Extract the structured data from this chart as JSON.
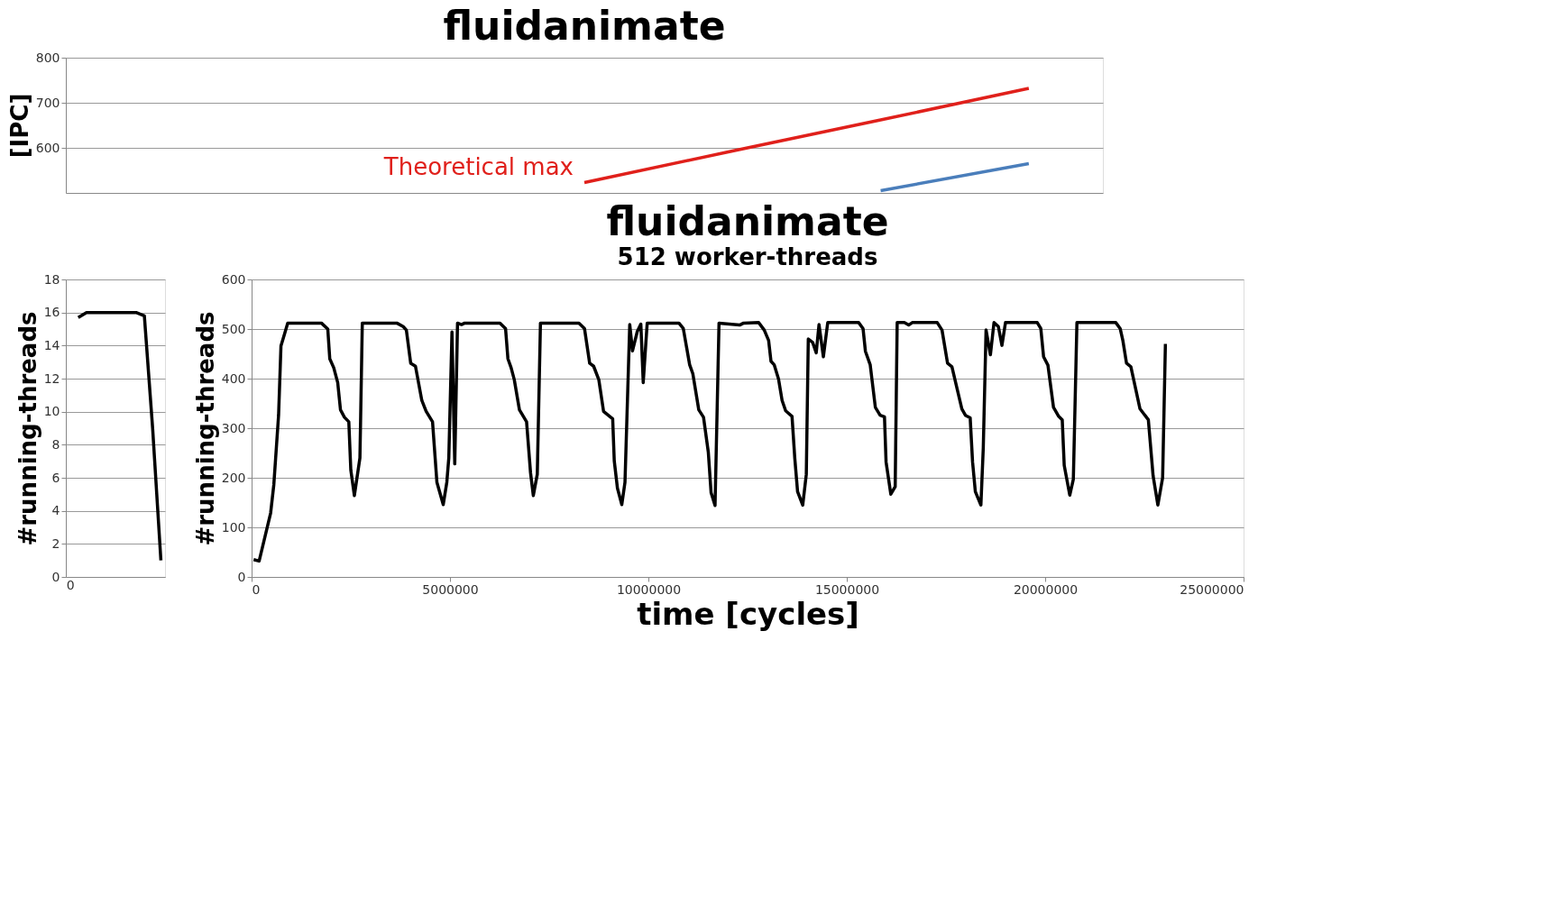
{
  "chart_data": [
    {
      "type": "line",
      "title": "fluidanimate",
      "ylabel": "[IPC]",
      "categories": [
        null,
        null,
        null,
        null,
        null,
        null,
        null
      ],
      "ylim": [
        500,
        800
      ],
      "yticks": [
        600,
        700,
        800
      ],
      "grid": "y",
      "tick_labels": "y",
      "series": [
        {
          "name": "Theoretical max",
          "color": "#e0201b",
          "values": [
            null,
            null,
            null,
            523,
            593,
            662,
            732
          ]
        },
        {
          "color": "#4a7ebb",
          "values": [
            null,
            null,
            null,
            null,
            null,
            505,
            565
          ]
        }
      ]
    },
    {
      "type": "line",
      "ylabel": "#running-threads",
      "categories": [
        "0",
        null,
        null,
        null,
        null,
        null,
        null,
        null,
        null,
        null,
        null,
        null
      ],
      "ylim": [
        0,
        18
      ],
      "yticks": [
        0,
        2,
        4,
        6,
        8,
        10,
        12,
        14,
        16,
        18
      ],
      "grid": "y",
      "series": [
        {
          "color": "#000000",
          "values": [
            null,
            15.7,
            16,
            16,
            16,
            16,
            16,
            16,
            16,
            15.8,
            9,
            1
          ]
        }
      ]
    },
    {
      "type": "line",
      "title": "fluidanimate",
      "subtitle": "512 worker-threads",
      "xlabel": "time [cycles]",
      "ylabel": "#running-threads",
      "xlim": [
        0,
        25000000
      ],
      "xticks": [
        0,
        5000000,
        10000000,
        15000000,
        20000000,
        25000000
      ],
      "ylim": [
        0,
        600
      ],
      "yticks": [
        0,
        100,
        200,
        300,
        400,
        500,
        600
      ],
      "grid": "y",
      "series": [
        {
          "color": "#000000",
          "x": [
            50000,
            190000,
            480000,
            560000,
            680000,
            740000,
            830000,
            910000,
            1760000,
            1920000,
            1970000,
            2070000,
            2170000,
            2240000,
            2340000,
            2450000,
            2500000,
            2590000,
            2730000,
            2790000,
            3660000,
            3820000,
            3900000,
            4010000,
            4130000,
            4290000,
            4400000,
            4560000,
            4670000,
            4830000,
            4920000,
            4970000,
            5050000,
            5120000,
            5190000,
            5290000,
            5370000,
            6260000,
            6400000,
            6460000,
            6540000,
            6620000,
            6750000,
            6930000,
            7030000,
            7100000,
            7200000,
            7280000,
            8250000,
            8390000,
            8520000,
            8620000,
            8750000,
            8870000,
            9100000,
            9140000,
            9220000,
            9330000,
            9410000,
            9530000,
            9600000,
            9720000,
            9810000,
            9870000,
            9970000,
            10770000,
            10880000,
            11040000,
            11120000,
            11270000,
            11390000,
            11510000,
            11580000,
            11680000,
            11780000,
            12300000,
            12400000,
            12780000,
            12920000,
            13030000,
            13090000,
            13170000,
            13280000,
            13370000,
            13460000,
            13620000,
            13690000,
            13760000,
            13890000,
            13980000,
            14030000,
            14140000,
            14230000,
            14300000,
            14410000,
            14520000,
            15300000,
            15410000,
            15470000,
            15590000,
            15720000,
            15840000,
            15950000,
            15990000,
            16110000,
            16220000,
            16270000,
            16450000,
            16560000,
            16650000,
            17280000,
            17400000,
            17540000,
            17650000,
            17900000,
            17990000,
            18110000,
            18170000,
            18240000,
            18380000,
            18440000,
            18510000,
            18620000,
            18710000,
            18820000,
            18910000,
            19000000,
            19800000,
            19890000,
            19960000,
            20070000,
            20210000,
            20340000,
            20430000,
            20480000,
            20620000,
            20710000,
            20800000,
            21780000,
            21890000,
            21960000,
            22050000,
            22160000,
            22390000,
            22600000,
            22720000,
            22840000,
            22960000,
            23030000
          ],
          "values": [
            35,
            32,
            129,
            186,
            326,
            466,
            490,
            512,
            512,
            500,
            440,
            422,
            392,
            337,
            322,
            313,
            216,
            164,
            240,
            512,
            512,
            505,
            498,
            431,
            425,
            356,
            334,
            313,
            191,
            146,
            191,
            240,
            494,
            228,
            512,
            509,
            512,
            512,
            501,
            440,
            422,
            398,
            337,
            313,
            210,
            164,
            207,
            512,
            512,
            501,
            431,
            425,
            398,
            334,
            319,
            234,
            179,
            146,
            191,
            509,
            456,
            495,
            510,
            392,
            512,
            512,
            501,
            428,
            410,
            337,
            322,
            252,
            170,
            144,
            512,
            508,
            512,
            513,
            498,
            477,
            435,
            428,
            399,
            356,
            335,
            324,
            239,
            172,
            145,
            207,
            480,
            473,
            452,
            509,
            444,
            513,
            513,
            501,
            455,
            428,
            342,
            326,
            323,
            232,
            167,
            182,
            513,
            513,
            508,
            513,
            513,
            498,
            431,
            424,
            339,
            326,
            321,
            232,
            172,
            145,
            260,
            498,
            448,
            513,
            505,
            467,
            513,
            513,
            501,
            444,
            427,
            342,
            324,
            317,
            225,
            165,
            197,
            513,
            513,
            501,
            476,
            431,
            424,
            339,
            317,
            204,
            145,
            200,
            470
          ]
        }
      ]
    }
  ]
}
